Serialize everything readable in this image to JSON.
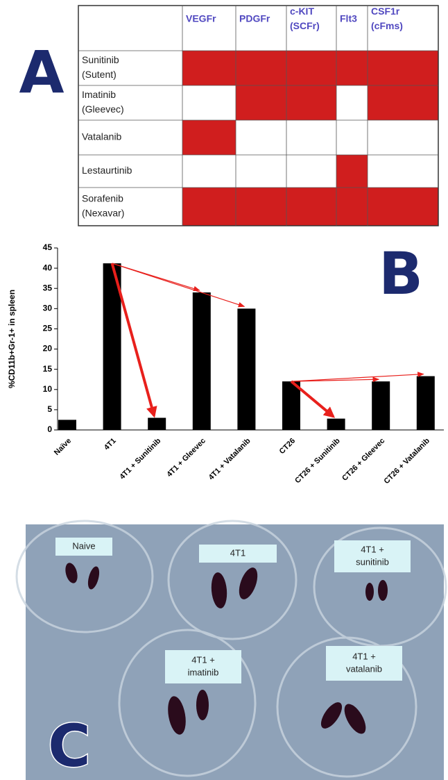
{
  "panel_a": {
    "label": "A",
    "columns": [
      [
        "VEGFr"
      ],
      [
        "PDGFr"
      ],
      [
        "c-KIT",
        "(SCFr)"
      ],
      [
        "Flt3"
      ],
      [
        "CSF1r",
        "(cFms)"
      ]
    ],
    "rows": [
      {
        "drug": [
          "Sunitinib",
          "(Sutent)"
        ],
        "targets": [
          true,
          true,
          true,
          true,
          true
        ]
      },
      {
        "drug": [
          "Imatinib",
          "(Gleevec)"
        ],
        "targets": [
          false,
          true,
          true,
          false,
          true
        ]
      },
      {
        "drug": [
          "Vatalanib"
        ],
        "targets": [
          true,
          false,
          false,
          false,
          false
        ]
      },
      {
        "drug": [
          "Lestaurtinib"
        ],
        "targets": [
          false,
          false,
          false,
          true,
          false
        ]
      },
      {
        "drug": [
          "Sorafenib",
          "(Nexavar)"
        ],
        "targets": [
          true,
          true,
          true,
          true,
          true
        ]
      }
    ],
    "target_color": "#d01e1e"
  },
  "chart_data": {
    "type": "bar",
    "label": "B",
    "y_label": "%CD11b+Gr-1+ in spleen",
    "categories": [
      "Naïve",
      "4T1",
      "4T1 + Sunitinib",
      "4T1 + Gleevec",
      "4T1 + Vatalanib",
      "CT26",
      "CT26 + Sunitinib",
      "CT26 + Gleevec",
      "CT26 + Vatalanib"
    ],
    "values": [
      2.5,
      41.2,
      3.0,
      34.0,
      30.0,
      12.0,
      2.8,
      12.0,
      13.3
    ],
    "color": "#000000",
    "arrow_color": "#e8201c",
    "ylim": [
      0,
      45
    ],
    "yticks": [
      0,
      5,
      10,
      15,
      20,
      25,
      30,
      35,
      40,
      45
    ],
    "grid": false
  },
  "panel_c": {
    "label": "C",
    "dish_labels": [
      [
        "Naive"
      ],
      [
        "4T1"
      ],
      [
        "4T1 +",
        "sunitinib"
      ],
      [
        "4T1 +",
        "imatinib"
      ],
      [
        "4T1 +",
        "vatalanib"
      ]
    ]
  }
}
